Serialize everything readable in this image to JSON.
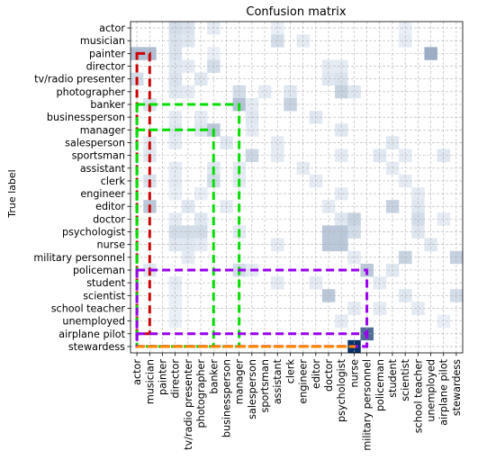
{
  "chart_data": {
    "type": "heatmap",
    "title": "Confusion matrix",
    "xlabel": "",
    "ylabel": "True label",
    "labels": [
      "actor",
      "musician",
      "painter",
      "director",
      "tv/radio presenter",
      "photographer",
      "banker",
      "businessperson",
      "manager",
      "salesperson",
      "sportsman",
      "assistant",
      "clerk",
      "engineer",
      "editor",
      "doctor",
      "psychologist",
      "nurse",
      "military personnel",
      "policeman",
      "student",
      "scientist",
      "school teacher",
      "unemployed",
      "airplane pilot",
      "stewardess"
    ],
    "colormap": [
      "#f7fbff",
      "#08306b"
    ],
    "grid": true,
    "cells": [
      [
        0,
        3,
        0.15
      ],
      [
        0,
        4,
        0.12
      ],
      [
        0,
        6,
        0.08
      ],
      [
        0,
        11,
        0.06
      ],
      [
        0,
        21,
        0.06
      ],
      [
        1,
        3,
        0.12
      ],
      [
        1,
        4,
        0.1
      ],
      [
        1,
        11,
        0.15
      ],
      [
        1,
        13,
        0.08
      ],
      [
        1,
        21,
        0.08
      ],
      [
        2,
        0,
        0.3
      ],
      [
        2,
        1,
        0.3
      ],
      [
        2,
        3,
        0.12
      ],
      [
        2,
        6,
        0.06
      ],
      [
        2,
        23,
        0.38
      ],
      [
        3,
        3,
        0.1
      ],
      [
        3,
        4,
        0.08
      ],
      [
        3,
        6,
        0.15
      ],
      [
        3,
        15,
        0.08
      ],
      [
        3,
        16,
        0.08
      ],
      [
        4,
        0,
        0.15
      ],
      [
        4,
        3,
        0.12
      ],
      [
        4,
        5,
        0.1
      ],
      [
        4,
        15,
        0.1
      ],
      [
        4,
        16,
        0.12
      ],
      [
        5,
        3,
        0.1
      ],
      [
        5,
        4,
        0.08
      ],
      [
        5,
        8,
        0.15
      ],
      [
        5,
        10,
        0.08
      ],
      [
        5,
        12,
        0.1
      ],
      [
        5,
        16,
        0.2
      ],
      [
        5,
        17,
        0.1
      ],
      [
        6,
        1,
        0.12
      ],
      [
        6,
        8,
        0.28
      ],
      [
        6,
        9,
        0.08
      ],
      [
        6,
        12,
        0.2
      ],
      [
        7,
        3,
        0.08
      ],
      [
        7,
        5,
        0.08
      ],
      [
        7,
        9,
        0.1
      ],
      [
        7,
        14,
        0.1
      ],
      [
        8,
        3,
        0.1
      ],
      [
        8,
        5,
        0.1
      ],
      [
        8,
        6,
        0.25
      ],
      [
        8,
        9,
        0.08
      ],
      [
        8,
        16,
        0.1
      ],
      [
        9,
        1,
        0.08
      ],
      [
        9,
        3,
        0.08
      ],
      [
        9,
        7,
        0.1
      ],
      [
        9,
        11,
        0.08
      ],
      [
        9,
        20,
        0.1
      ],
      [
        10,
        1,
        0.1
      ],
      [
        10,
        9,
        0.18
      ],
      [
        10,
        11,
        0.08
      ],
      [
        10,
        16,
        0.08
      ],
      [
        10,
        19,
        0.1
      ],
      [
        10,
        21,
        0.08
      ],
      [
        10,
        24,
        0.1
      ],
      [
        11,
        3,
        0.08
      ],
      [
        11,
        6,
        0.1
      ],
      [
        11,
        8,
        0.08
      ],
      [
        11,
        13,
        0.08
      ],
      [
        11,
        20,
        0.08
      ],
      [
        12,
        1,
        0.12
      ],
      [
        12,
        3,
        0.08
      ],
      [
        12,
        6,
        0.15
      ],
      [
        12,
        8,
        0.08
      ],
      [
        12,
        14,
        0.08
      ],
      [
        12,
        21,
        0.08
      ],
      [
        13,
        3,
        0.06
      ],
      [
        13,
        5,
        0.06
      ],
      [
        13,
        16,
        0.08
      ],
      [
        13,
        22,
        0.08
      ],
      [
        14,
        1,
        0.25
      ],
      [
        14,
        4,
        0.1
      ],
      [
        14,
        7,
        0.08
      ],
      [
        14,
        15,
        0.08
      ],
      [
        14,
        20,
        0.2
      ],
      [
        14,
        22,
        0.1
      ],
      [
        15,
        3,
        0.08
      ],
      [
        15,
        5,
        0.1
      ],
      [
        15,
        16,
        0.1
      ],
      [
        15,
        17,
        0.2
      ],
      [
        15,
        22,
        0.15
      ],
      [
        15,
        24,
        0.08
      ],
      [
        16,
        3,
        0.15
      ],
      [
        16,
        4,
        0.15
      ],
      [
        16,
        5,
        0.15
      ],
      [
        16,
        8,
        0.08
      ],
      [
        16,
        15,
        0.25
      ],
      [
        16,
        16,
        0.25
      ],
      [
        16,
        17,
        0.15
      ],
      [
        16,
        22,
        0.1
      ],
      [
        17,
        3,
        0.1
      ],
      [
        17,
        4,
        0.1
      ],
      [
        17,
        5,
        0.08
      ],
      [
        17,
        11,
        0.08
      ],
      [
        17,
        15,
        0.25
      ],
      [
        17,
        16,
        0.25
      ],
      [
        17,
        23,
        0.1
      ],
      [
        18,
        4,
        0.08
      ],
      [
        18,
        17,
        0.08
      ],
      [
        18,
        21,
        0.2
      ],
      [
        18,
        25,
        0.2
      ],
      [
        19,
        1,
        0.1
      ],
      [
        19,
        8,
        0.15
      ],
      [
        19,
        9,
        0.08
      ],
      [
        19,
        18,
        0.25
      ],
      [
        19,
        20,
        0.1
      ],
      [
        20,
        3,
        0.08
      ],
      [
        20,
        11,
        0.08
      ],
      [
        20,
        14,
        0.08
      ],
      [
        20,
        19,
        0.08
      ],
      [
        21,
        3,
        0.06
      ],
      [
        21,
        15,
        0.25
      ],
      [
        21,
        21,
        0.1
      ],
      [
        21,
        25,
        0.15
      ],
      [
        22,
        3,
        0.06
      ],
      [
        22,
        17,
        0.08
      ],
      [
        22,
        19,
        0.08
      ],
      [
        22,
        22,
        0.08
      ],
      [
        23,
        3,
        0.06
      ],
      [
        23,
        16,
        0.08
      ],
      [
        23,
        24,
        0.06
      ],
      [
        24,
        18,
        0.7
      ],
      [
        25,
        17,
        1.0
      ]
    ]
  },
  "overlays": [
    {
      "name": "red-box",
      "color": "#cc0000",
      "x": [
        0,
        1
      ],
      "y": [
        2,
        24
      ]
    },
    {
      "name": "green-box-banker",
      "color": "#00dd00",
      "x": [
        0,
        8
      ],
      "y": [
        6,
        25
      ]
    },
    {
      "name": "green-box-manager",
      "color": "#00dd00",
      "x": [
        0,
        6
      ],
      "y": [
        8,
        25
      ]
    },
    {
      "name": "purple-box-policeman",
      "color": "#9900ee",
      "x": [
        0,
        18
      ],
      "y": [
        19,
        25
      ]
    },
    {
      "name": "purple-box-airplane-pilot",
      "color": "#9900ee",
      "x": [
        0,
        18
      ],
      "y": [
        24,
        25
      ]
    },
    {
      "name": "orange-line-stewardess",
      "color": "#ff8800",
      "x": [
        0,
        17
      ],
      "y": [
        25,
        25
      ]
    }
  ]
}
